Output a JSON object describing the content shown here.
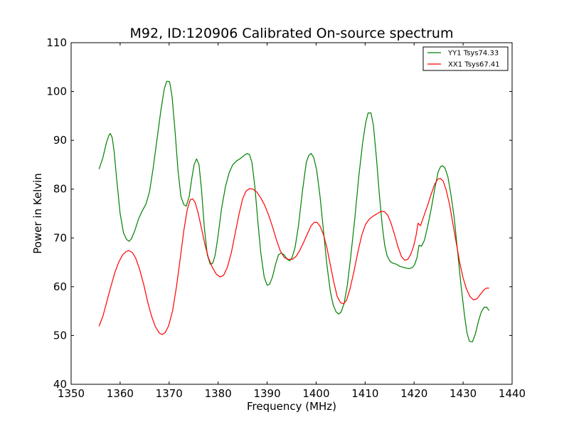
{
  "chart_data": {
    "type": "line",
    "title": "M92, ID:120906 Calibrated On-source spectrum",
    "xlabel": "Frequency (MHz)",
    "ylabel": "Power in Kelvin",
    "xlim": [
      1350,
      1440
    ],
    "ylim": [
      40,
      110
    ],
    "xticks": [
      "1350",
      "1360",
      "1370",
      "1380",
      "1390",
      "1400",
      "1410",
      "1420",
      "1430",
      "1440"
    ],
    "yticks": [
      "40",
      "50",
      "60",
      "70",
      "80",
      "90",
      "100",
      "110"
    ],
    "grid": false,
    "legend_position": "top-right",
    "series": [
      {
        "name": "YY1 Tsys74.33",
        "color": "#008000",
        "points": [
          [
            1355.7,
            84.1
          ],
          [
            1356.5,
            86.5
          ],
          [
            1357.2,
            89.5
          ],
          [
            1357.7,
            91.0
          ],
          [
            1358.0,
            91.4
          ],
          [
            1358.4,
            90.5
          ],
          [
            1358.8,
            87.5
          ],
          [
            1359.3,
            82.0
          ],
          [
            1360.0,
            75.0
          ],
          [
            1360.7,
            71.0
          ],
          [
            1361.3,
            69.7
          ],
          [
            1361.8,
            69.3
          ],
          [
            1362.3,
            69.8
          ],
          [
            1363.0,
            71.5
          ],
          [
            1363.8,
            74.0
          ],
          [
            1364.5,
            75.5
          ],
          [
            1365.3,
            77.0
          ],
          [
            1366.0,
            79.5
          ],
          [
            1366.7,
            84.0
          ],
          [
            1367.5,
            90.0
          ],
          [
            1368.3,
            96.0
          ],
          [
            1369.0,
            100.5
          ],
          [
            1369.5,
            102.1
          ],
          [
            1370.1,
            102.0
          ],
          [
            1370.6,
            99.0
          ],
          [
            1371.2,
            92.0
          ],
          [
            1371.8,
            84.0
          ],
          [
            1372.4,
            78.5
          ],
          [
            1373.0,
            76.8
          ],
          [
            1373.5,
            76.5
          ],
          [
            1374.1,
            78.5
          ],
          [
            1374.6,
            82.0
          ],
          [
            1375.1,
            85.0
          ],
          [
            1375.6,
            86.2
          ],
          [
            1376.1,
            85.0
          ],
          [
            1376.6,
            80.0
          ],
          [
            1377.2,
            72.0
          ],
          [
            1377.8,
            66.5
          ],
          [
            1378.4,
            64.6
          ],
          [
            1378.9,
            64.8
          ],
          [
            1379.4,
            66.5
          ],
          [
            1380.0,
            70.5
          ],
          [
            1380.7,
            76.0
          ],
          [
            1381.5,
            80.5
          ],
          [
            1382.3,
            83.5
          ],
          [
            1383.0,
            85.0
          ],
          [
            1383.8,
            85.8
          ],
          [
            1384.6,
            86.3
          ],
          [
            1385.3,
            86.9
          ],
          [
            1385.9,
            87.3
          ],
          [
            1386.4,
            87.1
          ],
          [
            1386.9,
            85.5
          ],
          [
            1387.5,
            80.5
          ],
          [
            1388.1,
            73.5
          ],
          [
            1388.7,
            67.0
          ],
          [
            1389.4,
            62.0
          ],
          [
            1390.0,
            60.3
          ],
          [
            1390.5,
            60.5
          ],
          [
            1391.1,
            62.0
          ],
          [
            1391.7,
            64.5
          ],
          [
            1392.3,
            66.5
          ],
          [
            1392.9,
            66.9
          ],
          [
            1393.5,
            66.5
          ],
          [
            1394.1,
            65.6
          ],
          [
            1394.6,
            65.3
          ],
          [
            1395.1,
            66.0
          ],
          [
            1395.7,
            68.0
          ],
          [
            1396.4,
            72.5
          ],
          [
            1397.2,
            79.5
          ],
          [
            1398.0,
            85.5
          ],
          [
            1398.5,
            86.9
          ],
          [
            1399.0,
            87.3
          ],
          [
            1399.5,
            86.5
          ],
          [
            1400.1,
            84.0
          ],
          [
            1400.8,
            78.5
          ],
          [
            1401.5,
            71.5
          ],
          [
            1402.2,
            64.5
          ],
          [
            1402.9,
            59.0
          ],
          [
            1403.5,
            56.2
          ],
          [
            1404.1,
            54.8
          ],
          [
            1404.6,
            54.4
          ],
          [
            1405.1,
            54.8
          ],
          [
            1405.7,
            56.5
          ],
          [
            1406.4,
            60.5
          ],
          [
            1407.1,
            66.5
          ],
          [
            1407.9,
            74.0
          ],
          [
            1408.7,
            82.5
          ],
          [
            1409.5,
            89.5
          ],
          [
            1410.1,
            93.5
          ],
          [
            1410.6,
            95.6
          ],
          [
            1411.2,
            95.6
          ],
          [
            1411.7,
            93.0
          ],
          [
            1412.3,
            86.5
          ],
          [
            1412.9,
            79.0
          ],
          [
            1413.5,
            72.5
          ],
          [
            1414.0,
            68.5
          ],
          [
            1414.5,
            66.3
          ],
          [
            1415.1,
            65.2
          ],
          [
            1415.7,
            64.8
          ],
          [
            1416.4,
            64.6
          ],
          [
            1417.0,
            64.2
          ],
          [
            1417.7,
            64.0
          ],
          [
            1418.4,
            63.8
          ],
          [
            1419.0,
            63.7
          ],
          [
            1419.6,
            63.9
          ],
          [
            1420.1,
            64.5
          ],
          [
            1420.6,
            66.0
          ],
          [
            1421.0,
            68.5
          ],
          [
            1421.5,
            68.3
          ],
          [
            1422.1,
            69.5
          ],
          [
            1422.8,
            72.5
          ],
          [
            1423.5,
            76.0
          ],
          [
            1424.2,
            80.0
          ],
          [
            1424.9,
            83.5
          ],
          [
            1425.4,
            84.6
          ],
          [
            1425.8,
            84.8
          ],
          [
            1426.3,
            84.3
          ],
          [
            1426.9,
            82.5
          ],
          [
            1427.5,
            79.0
          ],
          [
            1428.2,
            74.0
          ],
          [
            1428.9,
            67.0
          ],
          [
            1429.6,
            60.0
          ],
          [
            1430.3,
            54.0
          ],
          [
            1430.8,
            50.5
          ],
          [
            1431.3,
            48.8
          ],
          [
            1431.9,
            48.7
          ],
          [
            1432.5,
            50.3
          ],
          [
            1433.1,
            52.8
          ],
          [
            1433.7,
            54.8
          ],
          [
            1434.3,
            55.8
          ],
          [
            1434.8,
            55.8
          ],
          [
            1435.3,
            55.1
          ]
        ]
      },
      {
        "name": "XX1 Tsys67.41",
        "color": "#ff0000",
        "points": [
          [
            1355.7,
            51.9
          ],
          [
            1356.5,
            54.0
          ],
          [
            1357.3,
            57.0
          ],
          [
            1358.1,
            60.0
          ],
          [
            1358.9,
            62.8
          ],
          [
            1359.7,
            65.0
          ],
          [
            1360.5,
            66.5
          ],
          [
            1361.2,
            67.2
          ],
          [
            1361.8,
            67.4
          ],
          [
            1362.5,
            67.0
          ],
          [
            1363.2,
            65.8
          ],
          [
            1364.0,
            63.5
          ],
          [
            1364.8,
            60.5
          ],
          [
            1365.6,
            57.0
          ],
          [
            1366.4,
            54.0
          ],
          [
            1367.2,
            51.8
          ],
          [
            1368.0,
            50.5
          ],
          [
            1368.6,
            50.2
          ],
          [
            1369.2,
            50.6
          ],
          [
            1369.9,
            52.0
          ],
          [
            1370.7,
            55.0
          ],
          [
            1371.5,
            60.0
          ],
          [
            1372.3,
            66.0
          ],
          [
            1373.0,
            71.5
          ],
          [
            1373.7,
            75.8
          ],
          [
            1374.3,
            77.8
          ],
          [
            1374.8,
            78.0
          ],
          [
            1375.3,
            77.3
          ],
          [
            1375.9,
            75.2
          ],
          [
            1376.6,
            72.0
          ],
          [
            1377.3,
            68.7
          ],
          [
            1378.0,
            66.0
          ],
          [
            1378.8,
            64.0
          ],
          [
            1379.6,
            62.6
          ],
          [
            1380.4,
            62.0
          ],
          [
            1381.1,
            62.3
          ],
          [
            1381.9,
            64.0
          ],
          [
            1382.7,
            67.0
          ],
          [
            1383.5,
            71.0
          ],
          [
            1384.3,
            75.0
          ],
          [
            1385.0,
            78.0
          ],
          [
            1385.7,
            79.6
          ],
          [
            1386.4,
            80.1
          ],
          [
            1387.1,
            80.0
          ],
          [
            1387.9,
            79.4
          ],
          [
            1388.7,
            78.2
          ],
          [
            1389.5,
            76.7
          ],
          [
            1390.3,
            74.7
          ],
          [
            1391.1,
            72.3
          ],
          [
            1391.9,
            69.6
          ],
          [
            1392.7,
            67.3
          ],
          [
            1393.5,
            66.0
          ],
          [
            1394.3,
            65.6
          ],
          [
            1395.1,
            65.6
          ],
          [
            1395.9,
            66.2
          ],
          [
            1396.7,
            67.5
          ],
          [
            1397.5,
            69.2
          ],
          [
            1398.3,
            71.0
          ],
          [
            1399.0,
            72.5
          ],
          [
            1399.6,
            73.2
          ],
          [
            1400.2,
            73.2
          ],
          [
            1400.8,
            72.4
          ],
          [
            1401.5,
            70.7
          ],
          [
            1402.2,
            68.0
          ],
          [
            1402.9,
            64.5
          ],
          [
            1403.6,
            61.0
          ],
          [
            1404.3,
            58.0
          ],
          [
            1405.0,
            56.7
          ],
          [
            1405.6,
            56.5
          ],
          [
            1406.2,
            57.2
          ],
          [
            1406.9,
            59.5
          ],
          [
            1407.7,
            63.0
          ],
          [
            1408.5,
            67.0
          ],
          [
            1409.3,
            70.5
          ],
          [
            1410.1,
            72.8
          ],
          [
            1410.9,
            73.9
          ],
          [
            1411.7,
            74.5
          ],
          [
            1412.5,
            75.0
          ],
          [
            1413.2,
            75.4
          ],
          [
            1413.9,
            75.4
          ],
          [
            1414.6,
            74.7
          ],
          [
            1415.3,
            73.0
          ],
          [
            1416.0,
            70.7
          ],
          [
            1416.7,
            68.2
          ],
          [
            1417.4,
            66.2
          ],
          [
            1418.1,
            65.4
          ],
          [
            1418.7,
            65.6
          ],
          [
            1419.3,
            66.6
          ],
          [
            1419.9,
            68.3
          ],
          [
            1420.4,
            70.5
          ],
          [
            1420.8,
            73.0
          ],
          [
            1421.3,
            72.5
          ],
          [
            1422.0,
            74.5
          ],
          [
            1422.8,
            76.8
          ],
          [
            1423.5,
            79.0
          ],
          [
            1424.2,
            81.0
          ],
          [
            1424.8,
            82.0
          ],
          [
            1425.3,
            82.2
          ],
          [
            1425.9,
            81.7
          ],
          [
            1426.5,
            80.0
          ],
          [
            1427.2,
            77.0
          ],
          [
            1427.9,
            73.0
          ],
          [
            1428.6,
            69.0
          ],
          [
            1429.3,
            65.0
          ],
          [
            1430.0,
            61.8
          ],
          [
            1430.7,
            59.5
          ],
          [
            1431.4,
            58.0
          ],
          [
            1432.1,
            57.3
          ],
          [
            1432.8,
            57.5
          ],
          [
            1433.5,
            58.4
          ],
          [
            1434.2,
            59.3
          ],
          [
            1434.7,
            59.7
          ],
          [
            1435.3,
            59.7
          ]
        ]
      }
    ]
  }
}
